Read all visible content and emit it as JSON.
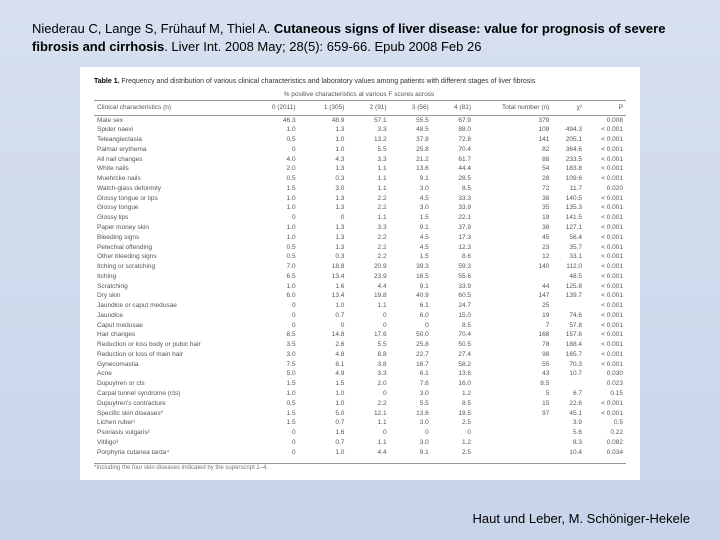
{
  "citation": {
    "authors": "Niederau C, Lange S, Frühauf M, Thiel A.",
    "title_bold": "Cutaneous signs of liver disease: value for prognosis of severe fibrosis and cirrhosis",
    "journal": ". Liver Int. 2008 May; 28(5): 659-66. Epub 2008 Feb 26"
  },
  "table": {
    "caption_bold": "Table 1.",
    "caption_rest": " Frequency and distribution of various clinical characteristics and laboratory values among patients with different stages of liver fibrosis",
    "superheader": "% positive characteristics at various F scores across",
    "columns": [
      "Clinical characteristics (n)",
      "0 (2011)",
      "1 (305)",
      "2 (91)",
      "3 (56)",
      "4 (81)",
      "Total number (n)",
      "χ²",
      "P"
    ],
    "rows": [
      [
        "Male sex",
        "46.3",
        "48.9",
        "57.1",
        "55.5",
        "67.9",
        "379",
        "",
        "0.008"
      ],
      [
        "Spider naevi",
        "1.0",
        "1.3",
        "3.3",
        "48.5",
        "88.0",
        "109",
        "494.3",
        "< 0.001"
      ],
      [
        "Teleangiectasia",
        "0.5",
        "1.0",
        "13.2",
        "37.9",
        "72.8",
        "141",
        "205.1",
        "< 0.001"
      ],
      [
        "Palmar erythema",
        "0",
        "1.0",
        "5.5",
        "25.8",
        "70.4",
        "82",
        "364.6",
        "< 0.001"
      ],
      [
        "All nail changes",
        "4.0",
        "4.3",
        "3.3",
        "21.2",
        "61.7",
        "88",
        "233.5",
        "< 0.001"
      ],
      [
        "White nails",
        "2.0",
        "1.3",
        "1.1",
        "13.6",
        "44.4",
        "54",
        "183.8",
        "< 0.001"
      ],
      [
        "Muehrcke nails",
        "0.5",
        "0.3",
        "1.1",
        "9.1",
        "28.5",
        "28",
        "109.6",
        "< 0.001"
      ],
      [
        "Watch-glass deformity",
        "1.5",
        "3.0",
        "1.1",
        "3.0",
        "8.5",
        "72",
        "11.7",
        "0.020"
      ],
      [
        "Glossy tongue or lips",
        "1.0",
        "1.3",
        "2.2",
        "4.5",
        "33.3",
        "38",
        "140.5",
        "< 0.001"
      ],
      [
        "Glossy tongue",
        "1.0",
        "1.3",
        "2.2",
        "3.0",
        "33.9",
        "35",
        "135.3",
        "< 0.001"
      ],
      [
        "Glossy lips",
        "0",
        "0",
        "1.1",
        "1.5",
        "22.1",
        "19",
        "141.5",
        "< 0.001"
      ],
      [
        "Paper money skin",
        "1.0",
        "1.3",
        "3.3",
        "9.1",
        "37.9",
        "38",
        "127.1",
        "< 0.001"
      ],
      [
        "Bleeding signs",
        "1.0",
        "1.3",
        "2.2",
        "4.5",
        "17.3",
        "45",
        "56.4",
        "< 0.001"
      ],
      [
        "Petechial offending",
        "0.5",
        "1.3",
        "2.2",
        "4.5",
        "12.3",
        "23",
        "35.7",
        "< 0.001"
      ],
      [
        "Other bleeding signs",
        "0.5",
        "0.3",
        "2.2",
        "1.5",
        "8.6",
        "12",
        "33.1",
        "< 0.001"
      ],
      [
        "Itching or scratching",
        "7.0",
        "18.8",
        "20.9",
        "39.3",
        "59.3",
        "140",
        "112.0",
        "< 0.001"
      ],
      [
        "Itching",
        "6.5",
        "13.4",
        "23.9",
        "16.5",
        "55.6",
        "",
        "48.5",
        "< 0.001"
      ],
      [
        "Scratching",
        "1.0",
        "1.6",
        "4.4",
        "9.1",
        "33.9",
        "44",
        "125.8",
        "< 0.001"
      ],
      [
        "Dry skin",
        "6.0",
        "13.4",
        "19.8",
        "40.9",
        "60.5",
        "147",
        "139.7",
        "< 0.001"
      ],
      [
        "Jaundice or caput medusae",
        "0",
        "1.0",
        "1.1",
        "6.1",
        "24.7",
        "25",
        "",
        "< 0.001"
      ],
      [
        "Jaundice",
        "0",
        "0.7",
        "0",
        "6.0",
        "15.0",
        "19",
        "74.6",
        "< 0.001"
      ],
      [
        "Caput medusae",
        "0",
        "0",
        "0",
        "0",
        "8.5",
        "7",
        "57.8",
        "< 0.001"
      ],
      [
        "Hair changes",
        "8.5",
        "14.8",
        "17.6",
        "50.0",
        "70.4",
        "168",
        "157.6",
        "< 0.001"
      ],
      [
        "Reduction or loss body or pubic hair",
        "3.5",
        "2.6",
        "5.5",
        "25.8",
        "50.5",
        "78",
        "188.4",
        "< 0.001"
      ],
      [
        "Reduction or loss of main hair",
        "3.0",
        "4.8",
        "8.8",
        "22.7",
        "27.4",
        "98",
        "165.7",
        "< 0.001"
      ],
      [
        "Gynecomastia",
        "7.5",
        "8.1",
        "3.8",
        "16.7",
        "58.2",
        "55",
        "70.3",
        "< 0.001"
      ],
      [
        "Acne",
        "5.0",
        "4.9",
        "3.3",
        "6.1",
        "13.6",
        "43",
        "10.7",
        "0.030"
      ],
      [
        "Dupuytren or cts",
        "1.5",
        "1.5",
        "2.0",
        "7.6",
        "16.0",
        "8.5",
        "",
        "0.023"
      ],
      [
        "Carpal tunnel syndrome (cts)",
        "1.0",
        "1.0",
        "0",
        "3.0",
        "1.2",
        "5",
        "6.7",
        "0.15"
      ],
      [
        "Dupuytren's contracture",
        "0.5",
        "1.0",
        "2.2",
        "5.5",
        "8.5",
        "15",
        "22.6",
        "< 0.001"
      ],
      [
        "Specific skin diseases*",
        "1.5",
        "5.0",
        "12.1",
        "13.6",
        "19.5",
        "97",
        "45.1",
        "< 0.001"
      ],
      [
        "Lichen ruber¹",
        "1.5",
        "0.7",
        "1.1",
        "3.0",
        "2.5",
        "",
        "3.9",
        "0.5"
      ],
      [
        "Psoriasis vulgaris²",
        "0",
        "1.6",
        "0",
        "0",
        "0",
        "",
        "5.6",
        "0.22"
      ],
      [
        "Vitiligo³",
        "0",
        "0.7",
        "1.1",
        "3.0",
        "1.2",
        "",
        "8.3",
        "0.082"
      ],
      [
        "Porphyria cutanea tarda⁴",
        "0",
        "1.0",
        "4.4",
        "9.1",
        "2.5",
        "",
        "10.4",
        "0.034"
      ]
    ],
    "footnote": "*Including the four skin diseases indicated by the superscript 1–4."
  },
  "footer": "Haut und Leber, M. Schöniger-Hekele"
}
